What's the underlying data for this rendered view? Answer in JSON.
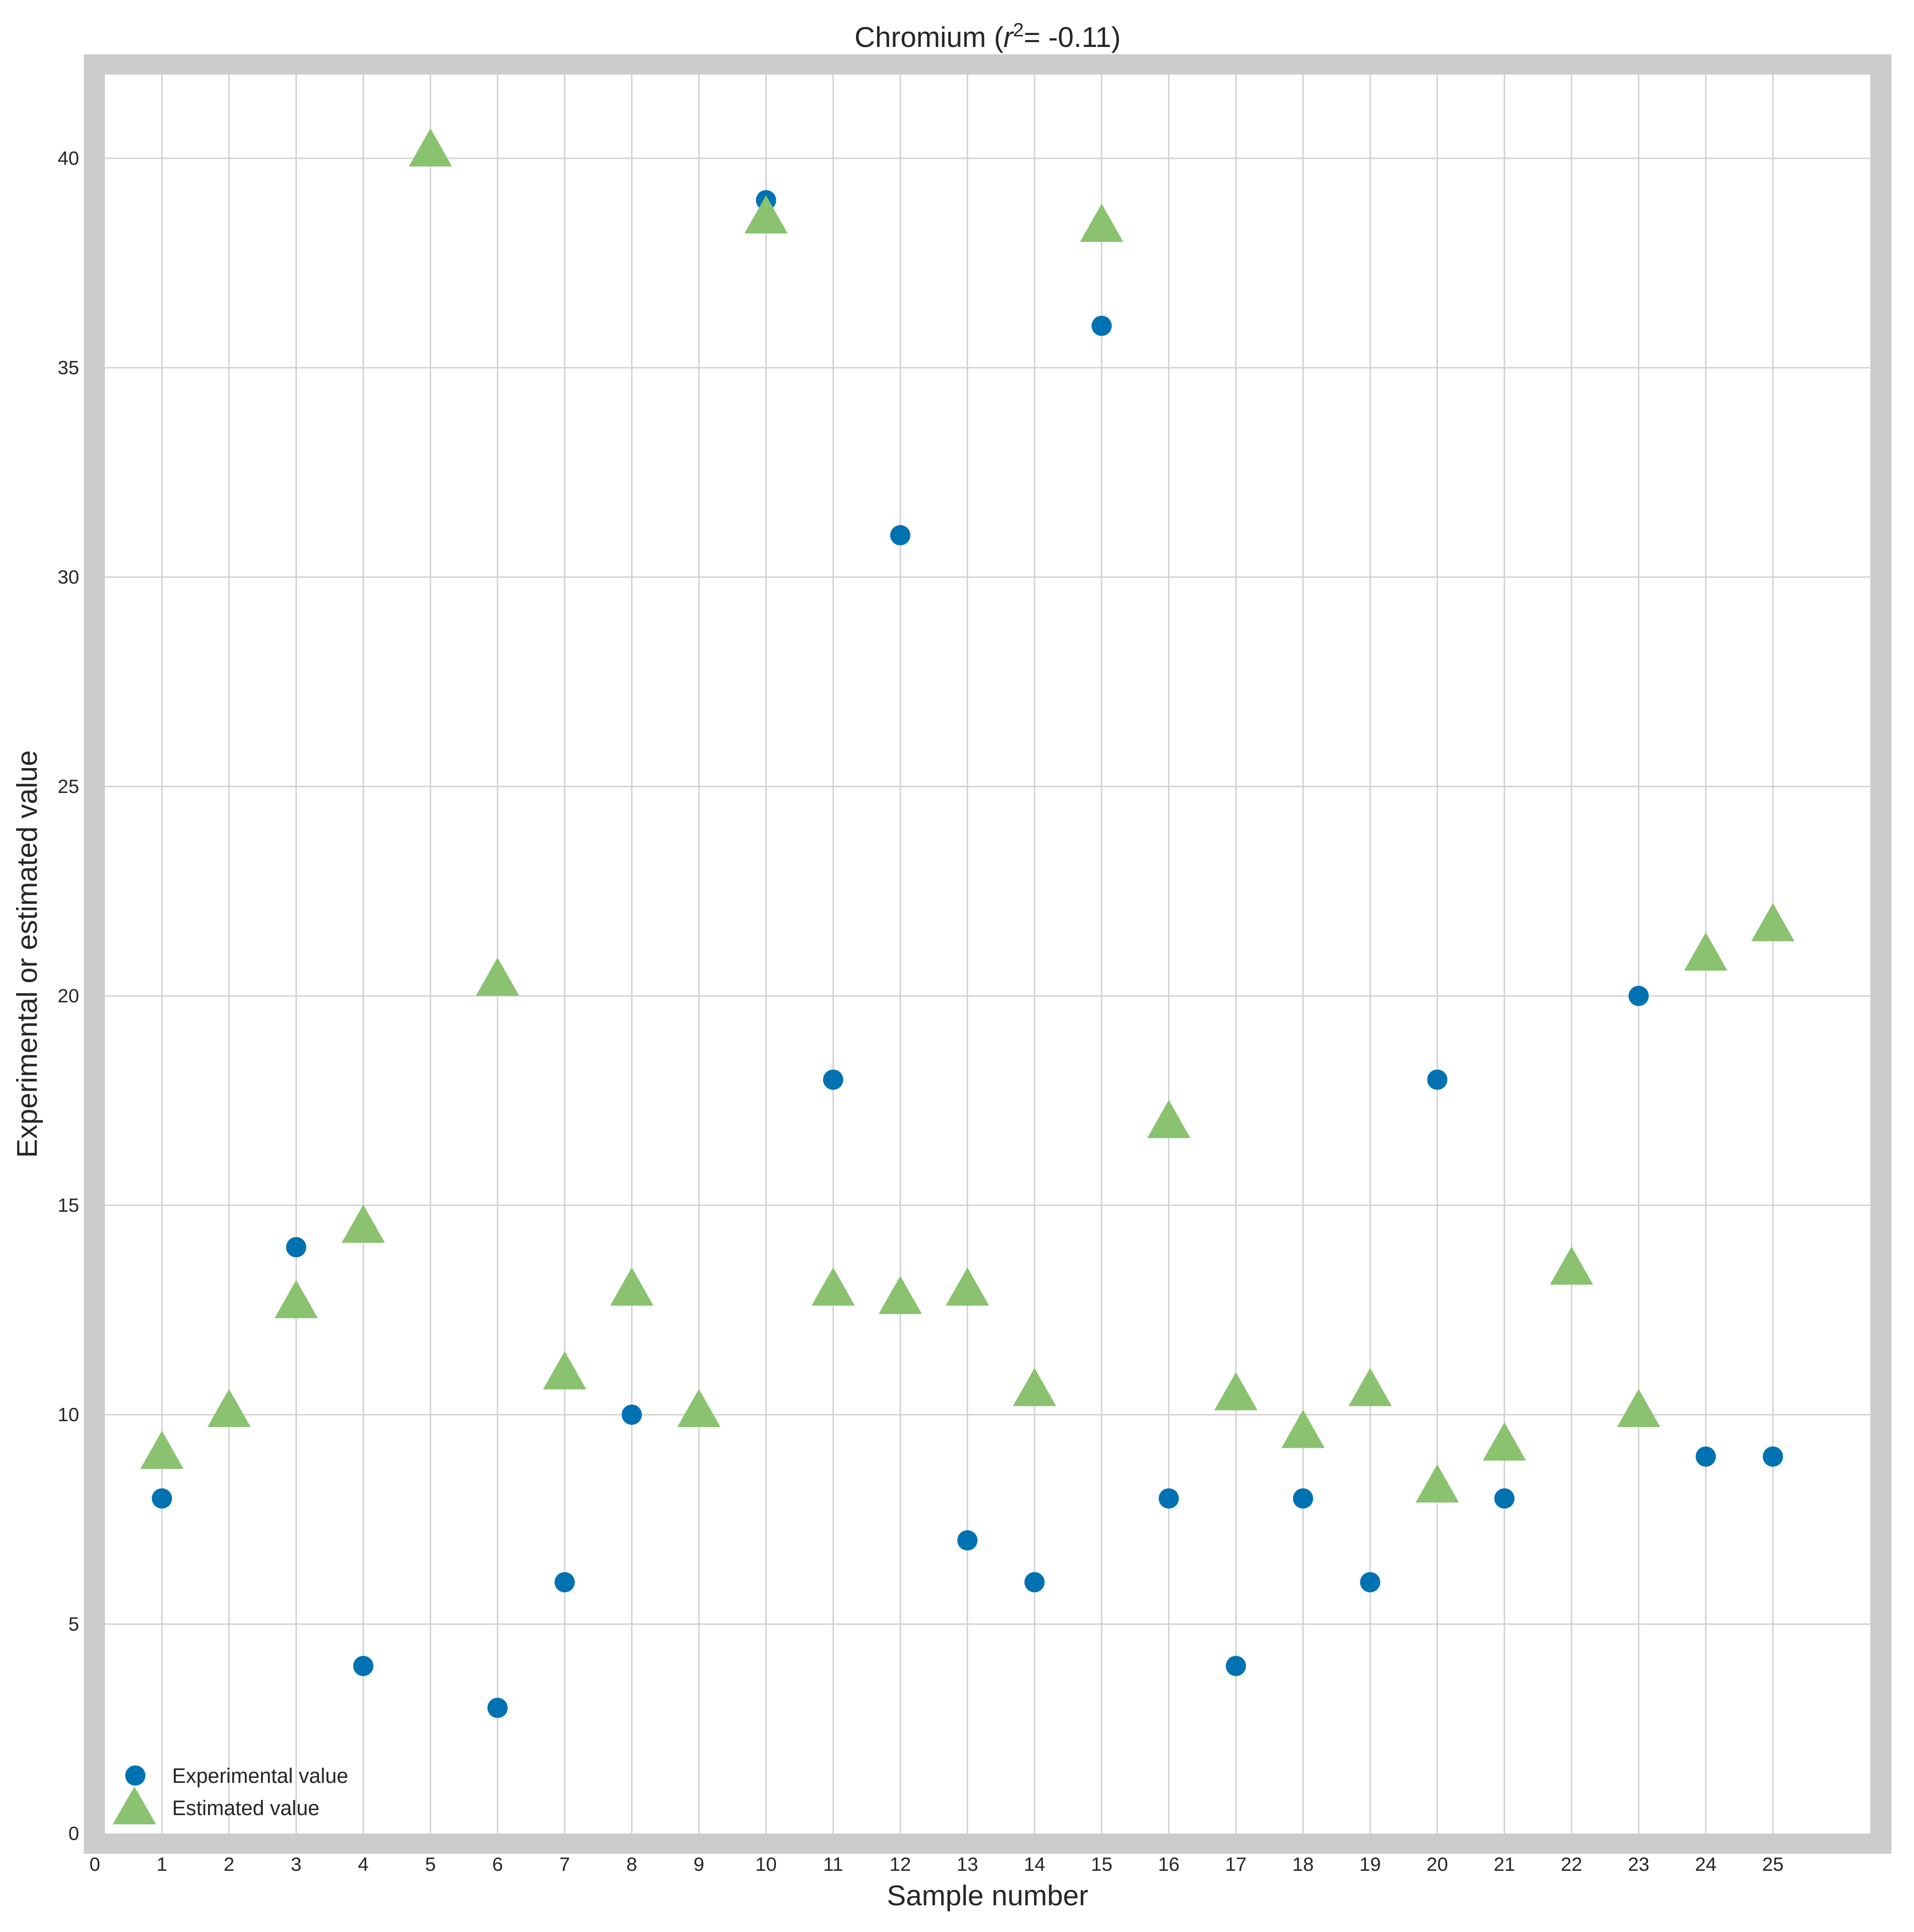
{
  "chart_data": {
    "type": "scatter",
    "title": {
      "prefix": "Chromium (",
      "var": "r",
      "sup": "2",
      "suffix": "= -0.11)"
    },
    "xlabel": "Sample number",
    "ylabel": "Experimental or estimated value",
    "xlim": [
      0,
      26.3
    ],
    "ylim": [
      0,
      42
    ],
    "xticks": [
      0,
      1,
      2,
      3,
      4,
      5,
      6,
      7,
      8,
      9,
      10,
      11,
      12,
      13,
      14,
      15,
      16,
      17,
      18,
      19,
      20,
      21,
      22,
      23,
      24,
      25
    ],
    "yticks": [
      0,
      5,
      10,
      15,
      20,
      25,
      30,
      35,
      40
    ],
    "grid": true,
    "legend": {
      "position": "bottom-left"
    },
    "colors": {
      "experimental": "#0072b2",
      "estimated": "#8ac270",
      "grid": "#d0d0d0",
      "frame": "#cccccc"
    },
    "x": [
      1,
      2,
      3,
      4,
      5,
      6,
      7,
      8,
      9,
      10,
      11,
      12,
      13,
      14,
      15,
      16,
      17,
      18,
      19,
      20,
      21,
      22,
      23,
      24,
      25
    ],
    "series": [
      {
        "name": "Experimental value",
        "marker": "circle",
        "points": [
          {
            "x": 1,
            "y": 8
          },
          {
            "x": 3,
            "y": 14
          },
          {
            "x": 4,
            "y": 4
          },
          {
            "x": 6,
            "y": 3
          },
          {
            "x": 7,
            "y": 6
          },
          {
            "x": 8,
            "y": 10
          },
          {
            "x": 10,
            "y": 39
          },
          {
            "x": 11,
            "y": 18
          },
          {
            "x": 12,
            "y": 31
          },
          {
            "x": 13,
            "y": 7
          },
          {
            "x": 14,
            "y": 6
          },
          {
            "x": 15,
            "y": 36
          },
          {
            "x": 16,
            "y": 8
          },
          {
            "x": 17,
            "y": 4
          },
          {
            "x": 18,
            "y": 8
          },
          {
            "x": 19,
            "y": 6
          },
          {
            "x": 20,
            "y": 18
          },
          {
            "x": 21,
            "y": 8
          },
          {
            "x": 23,
            "y": 20
          },
          {
            "x": 24,
            "y": 9
          },
          {
            "x": 25,
            "y": 9
          }
        ]
      },
      {
        "name": "Estimated value",
        "marker": "triangle",
        "points": [
          {
            "x": 1,
            "y": 9.1
          },
          {
            "x": 2,
            "y": 10.1
          },
          {
            "x": 3,
            "y": 12.7
          },
          {
            "x": 4,
            "y": 14.5
          },
          {
            "x": 5,
            "y": 40.2
          },
          {
            "x": 6,
            "y": 20.4
          },
          {
            "x": 7,
            "y": 11.0
          },
          {
            "x": 8,
            "y": 13.0
          },
          {
            "x": 9,
            "y": 10.1
          },
          {
            "x": 10,
            "y": 38.6
          },
          {
            "x": 11,
            "y": 13.0
          },
          {
            "x": 12,
            "y": 12.8
          },
          {
            "x": 13,
            "y": 13.0
          },
          {
            "x": 14,
            "y": 10.6
          },
          {
            "x": 15,
            "y": 38.4
          },
          {
            "x": 16,
            "y": 17.0
          },
          {
            "x": 17,
            "y": 10.5
          },
          {
            "x": 18,
            "y": 9.6
          },
          {
            "x": 19,
            "y": 10.6
          },
          {
            "x": 20,
            "y": 8.3
          },
          {
            "x": 21,
            "y": 9.3
          },
          {
            "x": 22,
            "y": 13.5
          },
          {
            "x": 23,
            "y": 10.1
          },
          {
            "x": 24,
            "y": 21.0
          },
          {
            "x": 25,
            "y": 21.7
          }
        ]
      }
    ]
  }
}
